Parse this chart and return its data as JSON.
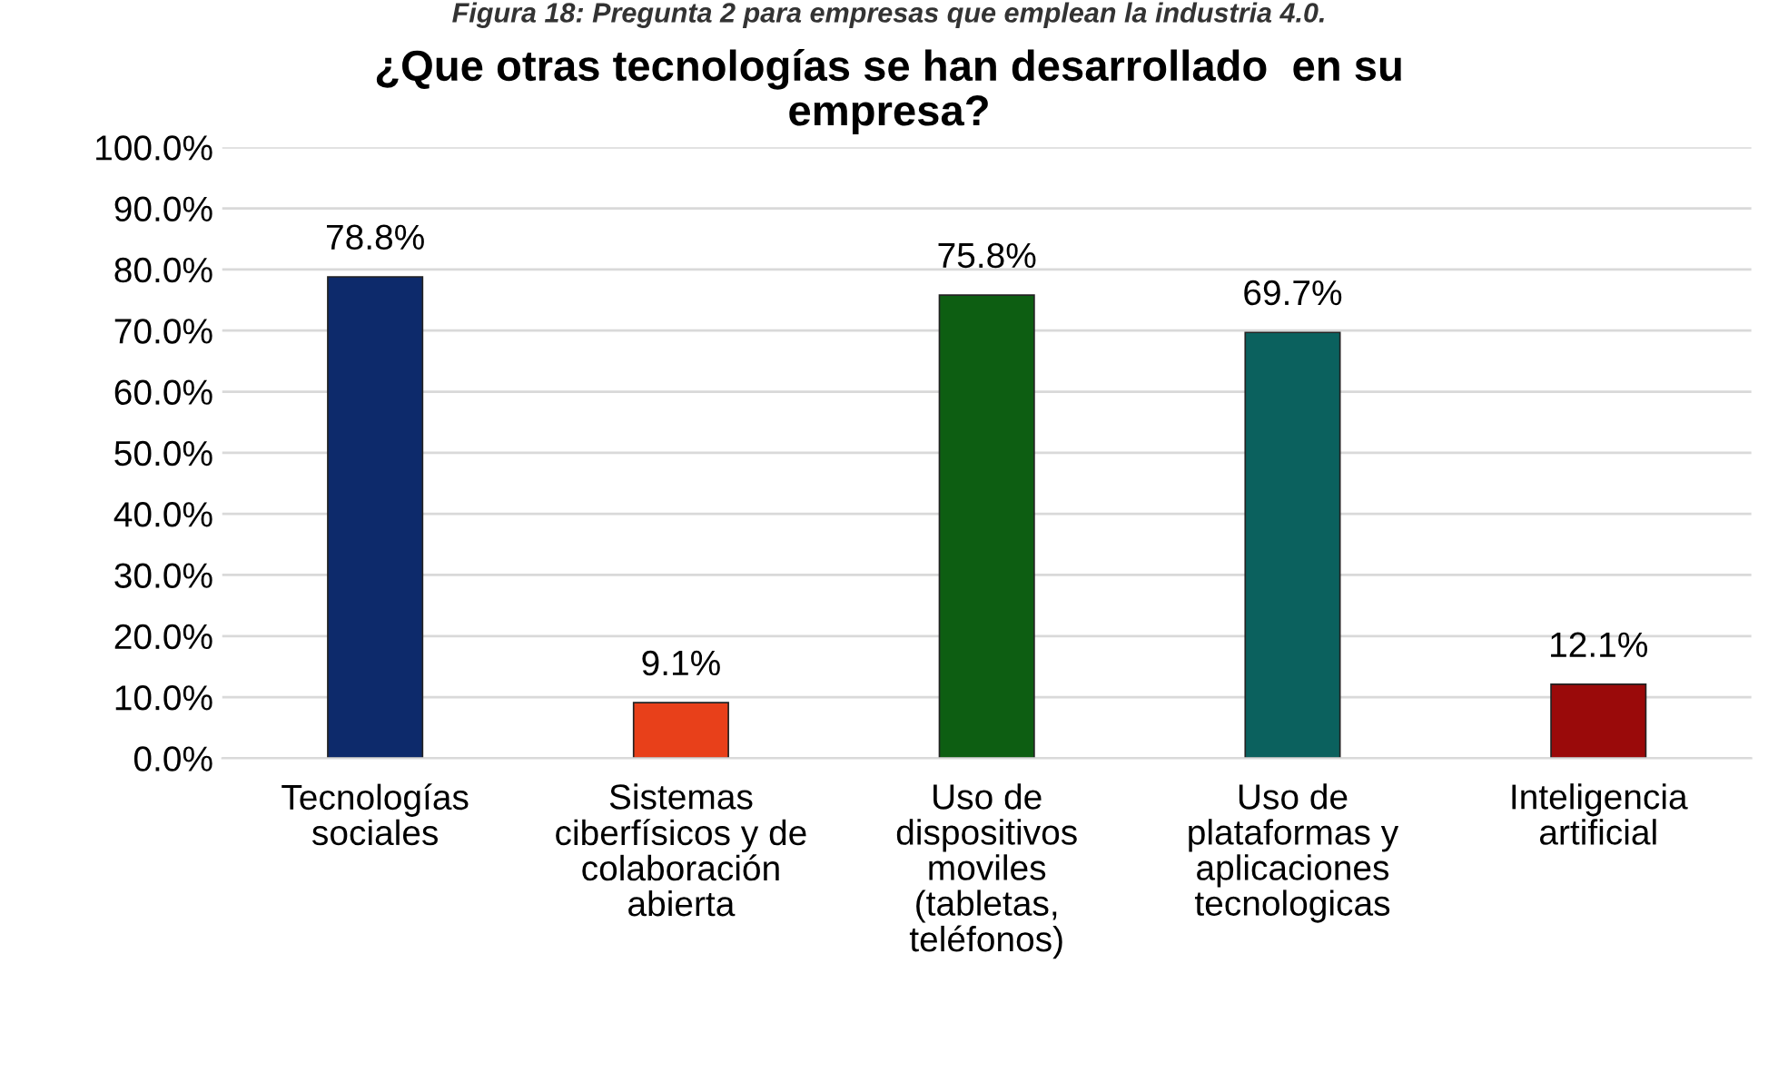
{
  "chart_data": {
    "type": "bar",
    "title": "¿Que otras tecnologías se han desarrollado  en su\nempresa?",
    "annotations": [
      "Figura 18: Pregunta 2 para empresas que emplean la industria 4.0."
    ],
    "categories": [
      "Tecnologías\nsociales",
      "Sistemas\nciberfísicos y de\ncolaboración\nabierta",
      "Uso de\ndispositivos\nmoviles\n(tabletas,\nteléfonos)",
      "Uso de\nplataformas y\naplicaciones\ntecnologicas",
      "Inteligencia\nartificial"
    ],
    "values": [
      78.8,
      9.1,
      75.8,
      69.7,
      12.1
    ],
    "colors": [
      "#0d2a6b",
      "#e8401a",
      "#0d5e12",
      "#0b615e",
      "#9a0a0a"
    ],
    "value_labels": [
      "78.8%",
      "9.1%",
      "75.8%",
      "69.7%",
      "12.1%"
    ],
    "ylim": [
      0,
      100
    ],
    "yticks": [
      {
        "value": 0,
        "label": "0.0%"
      },
      {
        "value": 10,
        "label": "10.0%"
      },
      {
        "value": 20,
        "label": "20.0%"
      },
      {
        "value": 30,
        "label": "30.0%"
      },
      {
        "value": 40,
        "label": "40.0%"
      },
      {
        "value": 50,
        "label": "50.0%"
      },
      {
        "value": 60,
        "label": "60.0%"
      },
      {
        "value": 70,
        "label": "70.0%"
      },
      {
        "value": 80,
        "label": "80.0%"
      },
      {
        "value": 90,
        "label": "90.0%"
      },
      {
        "value": 100,
        "label": "100.0%"
      }
    ],
    "grid": "y",
    "legend": false
  }
}
